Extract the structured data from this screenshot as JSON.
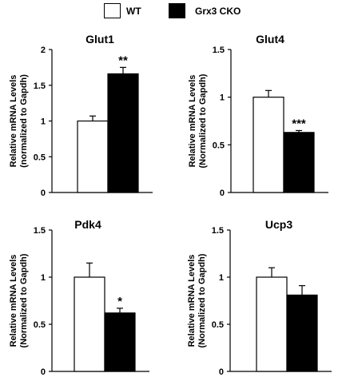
{
  "legend": {
    "items": [
      {
        "label": "WT",
        "fill": "#ffffff"
      },
      {
        "label": "Grx3 CKO",
        "fill": "#000000"
      }
    ]
  },
  "colors": {
    "wt": "#ffffff",
    "cko": "#000000",
    "axis": "#000000"
  },
  "chart_data": [
    {
      "type": "bar",
      "title": "Glut1",
      "ylabel_lines": [
        "Relative mRNA Levels",
        "(normalized to Gapdh)"
      ],
      "series": [
        {
          "name": "WT",
          "values": [
            1.0
          ],
          "errors": [
            0.07
          ]
        },
        {
          "name": "Grx3 CKO",
          "values": [
            1.66
          ],
          "errors": [
            0.09
          ]
        }
      ],
      "ylim": [
        0,
        2
      ],
      "yticks": [
        0,
        0.5,
        1,
        1.5,
        2
      ],
      "ytick_labels": [
        "0",
        "0.5",
        "1",
        "1.5",
        "2"
      ],
      "significance": "**"
    },
    {
      "type": "bar",
      "title": "Glut4",
      "ylabel_lines": [
        "Relative mRNA Levels",
        "(Normalized to Gapdh)"
      ],
      "series": [
        {
          "name": "WT",
          "values": [
            1.0
          ],
          "errors": [
            0.07
          ]
        },
        {
          "name": "Grx3 CKO",
          "values": [
            0.63
          ],
          "errors": [
            0.02
          ]
        }
      ],
      "ylim": [
        0,
        1.5
      ],
      "yticks": [
        0,
        0.5,
        1,
        1.5
      ],
      "ytick_labels": [
        "0",
        "0.5",
        "1",
        "1.5"
      ],
      "significance": "***"
    },
    {
      "type": "bar",
      "title": "Pdk4",
      "ylabel_lines": [
        "Relative mRNA Levels",
        "(Normalized to Gapdh)"
      ],
      "series": [
        {
          "name": "WT",
          "values": [
            1.0
          ],
          "errors": [
            0.15
          ]
        },
        {
          "name": "Grx3 CKO",
          "values": [
            0.62
          ],
          "errors": [
            0.05
          ]
        }
      ],
      "ylim": [
        0,
        1.5
      ],
      "yticks": [
        0,
        0.5,
        1,
        1.5
      ],
      "ytick_labels": [
        "0",
        "0.5",
        "1",
        "1.5"
      ],
      "significance": "*"
    },
    {
      "type": "bar",
      "title": "Ucp3",
      "ylabel_lines": [
        "Relative mRNA Levels",
        "(Normalized to Gapdh)"
      ],
      "series": [
        {
          "name": "WT",
          "values": [
            1.0
          ],
          "errors": [
            0.1
          ]
        },
        {
          "name": "Grx3 CKO",
          "values": [
            0.81
          ],
          "errors": [
            0.1
          ]
        }
      ],
      "ylim": [
        0,
        1.5
      ],
      "yticks": [
        0,
        0.5,
        1,
        1.5
      ],
      "ytick_labels": [
        "0",
        "0.5",
        "1",
        "1.5"
      ],
      "significance": ""
    }
  ]
}
